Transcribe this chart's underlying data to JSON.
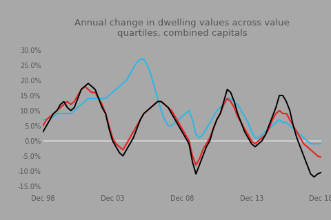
{
  "title": "Annual change in dwelling values across value\nquartiles, combined capitals",
  "background_color": "#a8a8a8",
  "x_ticks_labels": [
    "Dec 98",
    "Dec 03",
    "Dec 08",
    "Dec 13",
    "Dec 18"
  ],
  "y_ticks": [
    -0.15,
    -0.1,
    -0.05,
    0.0,
    0.05,
    0.1,
    0.15,
    0.2,
    0.25,
    0.3
  ],
  "ylim": [
    -0.175,
    0.335
  ],
  "xlim": [
    0,
    80
  ],
  "line_colors": [
    "#000000",
    "#e82020",
    "#29b6e8"
  ],
  "zero_line_color": "#d8d8d8",
  "n_points": 81,
  "black": [
    0.03,
    0.05,
    0.07,
    0.09,
    0.1,
    0.12,
    0.13,
    0.11,
    0.1,
    0.11,
    0.14,
    0.17,
    0.18,
    0.19,
    0.18,
    0.17,
    0.14,
    0.11,
    0.09,
    0.04,
    0.0,
    -0.02,
    -0.04,
    -0.05,
    -0.03,
    -0.01,
    0.01,
    0.04,
    0.07,
    0.09,
    0.1,
    0.11,
    0.12,
    0.13,
    0.13,
    0.12,
    0.11,
    0.09,
    0.07,
    0.05,
    0.03,
    0.01,
    -0.01,
    -0.07,
    -0.11,
    -0.08,
    -0.05,
    -0.02,
    0.0,
    0.04,
    0.07,
    0.09,
    0.13,
    0.17,
    0.16,
    0.13,
    0.09,
    0.06,
    0.03,
    0.01,
    -0.01,
    -0.02,
    -0.01,
    0.0,
    0.02,
    0.05,
    0.08,
    0.11,
    0.15,
    0.15,
    0.13,
    0.1,
    0.05,
    0.01,
    -0.02,
    -0.05,
    -0.08,
    -0.11,
    -0.12,
    -0.11,
    -0.105
  ],
  "red": [
    0.05,
    0.07,
    0.08,
    0.09,
    0.1,
    0.11,
    0.12,
    0.13,
    0.12,
    0.13,
    0.15,
    0.17,
    0.18,
    0.17,
    0.16,
    0.16,
    0.14,
    0.12,
    0.09,
    0.05,
    0.01,
    -0.01,
    -0.02,
    -0.03,
    -0.01,
    0.01,
    0.03,
    0.05,
    0.07,
    0.09,
    0.1,
    0.11,
    0.12,
    0.13,
    0.13,
    0.12,
    0.11,
    0.1,
    0.08,
    0.06,
    0.04,
    0.02,
    0.0,
    -0.05,
    -0.08,
    -0.06,
    -0.03,
    -0.01,
    0.01,
    0.04,
    0.07,
    0.09,
    0.12,
    0.14,
    0.13,
    0.11,
    0.08,
    0.06,
    0.04,
    0.02,
    0.0,
    -0.01,
    0.0,
    0.01,
    0.02,
    0.04,
    0.07,
    0.09,
    0.1,
    0.09,
    0.09,
    0.07,
    0.05,
    0.03,
    0.01,
    -0.01,
    -0.02,
    -0.03,
    -0.04,
    -0.05,
    -0.055
  ],
  "cyan": [
    0.07,
    0.07,
    0.08,
    0.08,
    0.09,
    0.09,
    0.09,
    0.09,
    0.09,
    0.1,
    0.11,
    0.12,
    0.13,
    0.14,
    0.14,
    0.14,
    0.14,
    0.14,
    0.14,
    0.15,
    0.16,
    0.17,
    0.18,
    0.19,
    0.2,
    0.22,
    0.24,
    0.26,
    0.27,
    0.27,
    0.25,
    0.22,
    0.18,
    0.14,
    0.1,
    0.07,
    0.05,
    0.05,
    0.06,
    0.07,
    0.08,
    0.09,
    0.1,
    0.07,
    0.02,
    0.01,
    0.02,
    0.04,
    0.06,
    0.08,
    0.1,
    0.11,
    0.12,
    0.14,
    0.14,
    0.13,
    0.12,
    0.1,
    0.08,
    0.06,
    0.03,
    0.01,
    0.01,
    0.02,
    0.03,
    0.04,
    0.05,
    0.06,
    0.07,
    0.06,
    0.06,
    0.05,
    0.04,
    0.03,
    0.02,
    0.01,
    0.0,
    -0.01,
    -0.01,
    -0.01,
    -0.01
  ]
}
